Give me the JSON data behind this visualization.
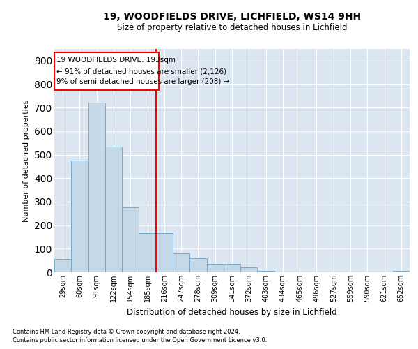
{
  "title1": "19, WOODFIELDS DRIVE, LICHFIELD, WS14 9HH",
  "title2": "Size of property relative to detached houses in Lichfield",
  "xlabel": "Distribution of detached houses by size in Lichfield",
  "ylabel": "Number of detached properties",
  "categories": [
    "29sqm",
    "60sqm",
    "91sqm",
    "122sqm",
    "154sqm",
    "185sqm",
    "216sqm",
    "247sqm",
    "278sqm",
    "309sqm",
    "341sqm",
    "372sqm",
    "403sqm",
    "434sqm",
    "465sqm",
    "496sqm",
    "527sqm",
    "559sqm",
    "590sqm",
    "621sqm",
    "652sqm"
  ],
  "values": [
    55,
    475,
    720,
    535,
    275,
    165,
    165,
    80,
    60,
    35,
    35,
    20,
    5,
    0,
    0,
    0,
    0,
    0,
    0,
    0,
    5
  ],
  "bar_color": "#c5d8e8",
  "bar_edge_color": "#7aabcc",
  "background_color": "#dce6f0",
  "ylim": [
    0,
    950
  ],
  "yticks": [
    0,
    100,
    200,
    300,
    400,
    500,
    600,
    700,
    800,
    900
  ],
  "redline_x": 5.5,
  "annotation_text_line1": "19 WOODFIELDS DRIVE: 193sqm",
  "annotation_text_line2": "← 91% of detached houses are smaller (2,126)",
  "annotation_text_line3": "9% of semi-detached houses are larger (208) →",
  "footer1": "Contains HM Land Registry data © Crown copyright and database right 2024.",
  "footer2": "Contains public sector information licensed under the Open Government Licence v3.0."
}
